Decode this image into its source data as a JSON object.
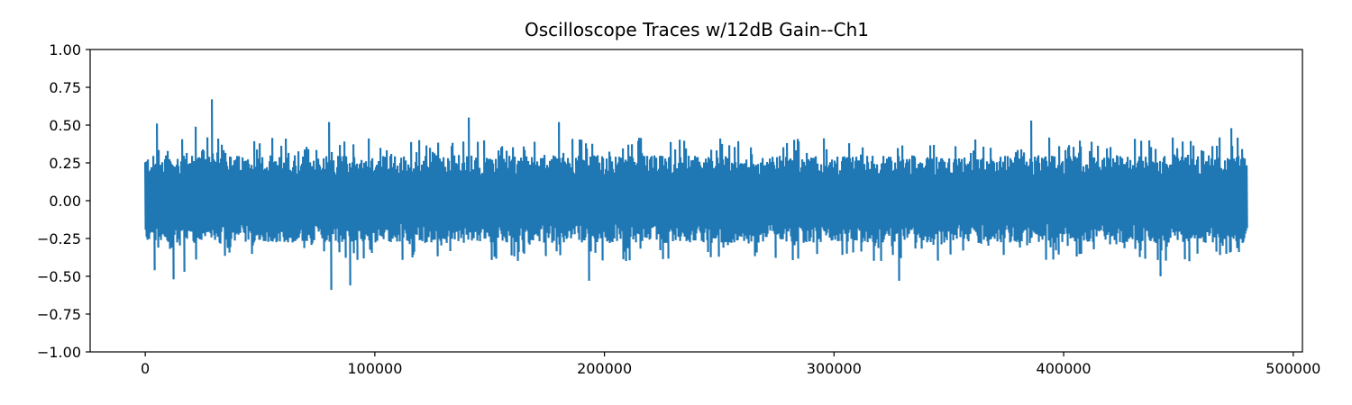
{
  "chart_data": {
    "type": "line",
    "title": "Oscilloscope Traces w/12dB Gain--Ch1",
    "xlabel": "",
    "ylabel": "",
    "xlim": [
      -24000,
      504000
    ],
    "ylim": [
      -1.0,
      1.0
    ],
    "xticks": [
      0,
      100000,
      200000,
      300000,
      400000,
      500000
    ],
    "xtick_labels": [
      "0",
      "100000",
      "200000",
      "300000",
      "400000",
      "500000"
    ],
    "yticks": [
      1.0,
      0.75,
      0.5,
      0.25,
      0.0,
      -0.25,
      -0.5,
      -0.75,
      -1.0
    ],
    "ytick_labels": [
      "1.00",
      "0.75",
      "0.50",
      "0.25",
      "0.00",
      "−0.25",
      "−0.50",
      "−0.75",
      "−1.00"
    ],
    "grid": false,
    "legend": "none",
    "series": [
      {
        "color": "#1f77b4",
        "x_range": [
          0,
          480000
        ],
        "noise_band": [
          -0.28,
          0.3
        ],
        "peaks": [
          {
            "x": 29000,
            "y": 0.67
          },
          {
            "x": 141000,
            "y": 0.55
          },
          {
            "x": 386000,
            "y": 0.53
          },
          {
            "x": 80000,
            "y": 0.52
          },
          {
            "x": 180000,
            "y": 0.52
          },
          {
            "x": 5000,
            "y": 0.51
          },
          {
            "x": 22000,
            "y": 0.49
          },
          {
            "x": 473000,
            "y": 0.48
          },
          {
            "x": 81000,
            "y": -0.59
          },
          {
            "x": 89000,
            "y": -0.56
          },
          {
            "x": 328000,
            "y": -0.53
          },
          {
            "x": 12000,
            "y": -0.52
          },
          {
            "x": 193000,
            "y": -0.53
          },
          {
            "x": 442000,
            "y": -0.5
          },
          {
            "x": 4000,
            "y": -0.46
          },
          {
            "x": 17000,
            "y": -0.47
          }
        ]
      }
    ]
  }
}
